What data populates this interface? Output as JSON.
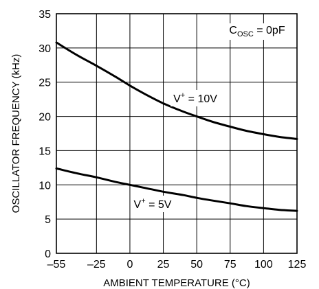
{
  "chart_data": {
    "type": "line",
    "xlabel": "AMBIENT TEMPERATURE (°C)",
    "ylabel": "OSCILLATOR FREQUENCY (kHz)",
    "xlim": [
      -55,
      125
    ],
    "ylim": [
      0,
      35
    ],
    "x_ticks": [
      -55,
      -25,
      0,
      25,
      50,
      75,
      100,
      125
    ],
    "x_tick_labels": [
      "–55",
      "–25",
      "0",
      "25",
      "50",
      "75",
      "100",
      "125"
    ],
    "y_ticks": [
      0,
      5,
      10,
      15,
      20,
      25,
      30,
      35
    ],
    "y_tick_labels": [
      "0",
      "5",
      "10",
      "15",
      "20",
      "25",
      "30",
      "35"
    ],
    "grid": true,
    "legend": "none",
    "annotations": {
      "condition": {
        "prefix": "C",
        "sub": "OSC",
        "suffix": " = 0pF",
        "position": "top-right"
      },
      "series_10v": {
        "prefix": "V",
        "sup": "+",
        "suffix": " = 10V"
      },
      "series_5v": {
        "prefix": "V",
        "sup": "+",
        "suffix": " = 5V"
      }
    },
    "series": [
      {
        "name": "V+ = 10V",
        "x": [
          -55,
          -40,
          -25,
          -10,
          0,
          10,
          25,
          40,
          50,
          62,
          75,
          87,
          100,
          112,
          125
        ],
        "y": [
          30.8,
          29.0,
          27.4,
          25.7,
          24.5,
          23.4,
          21.9,
          20.7,
          20.0,
          19.2,
          18.5,
          17.9,
          17.4,
          17.0,
          16.7
        ]
      },
      {
        "name": "V+ = 5V",
        "x": [
          -55,
          -40,
          -25,
          -10,
          0,
          10,
          25,
          40,
          50,
          62,
          75,
          87,
          100,
          112,
          125
        ],
        "y": [
          12.4,
          11.7,
          11.1,
          10.4,
          10.0,
          9.6,
          9.0,
          8.5,
          8.1,
          7.7,
          7.3,
          6.9,
          6.6,
          6.35,
          6.2
        ]
      }
    ]
  }
}
